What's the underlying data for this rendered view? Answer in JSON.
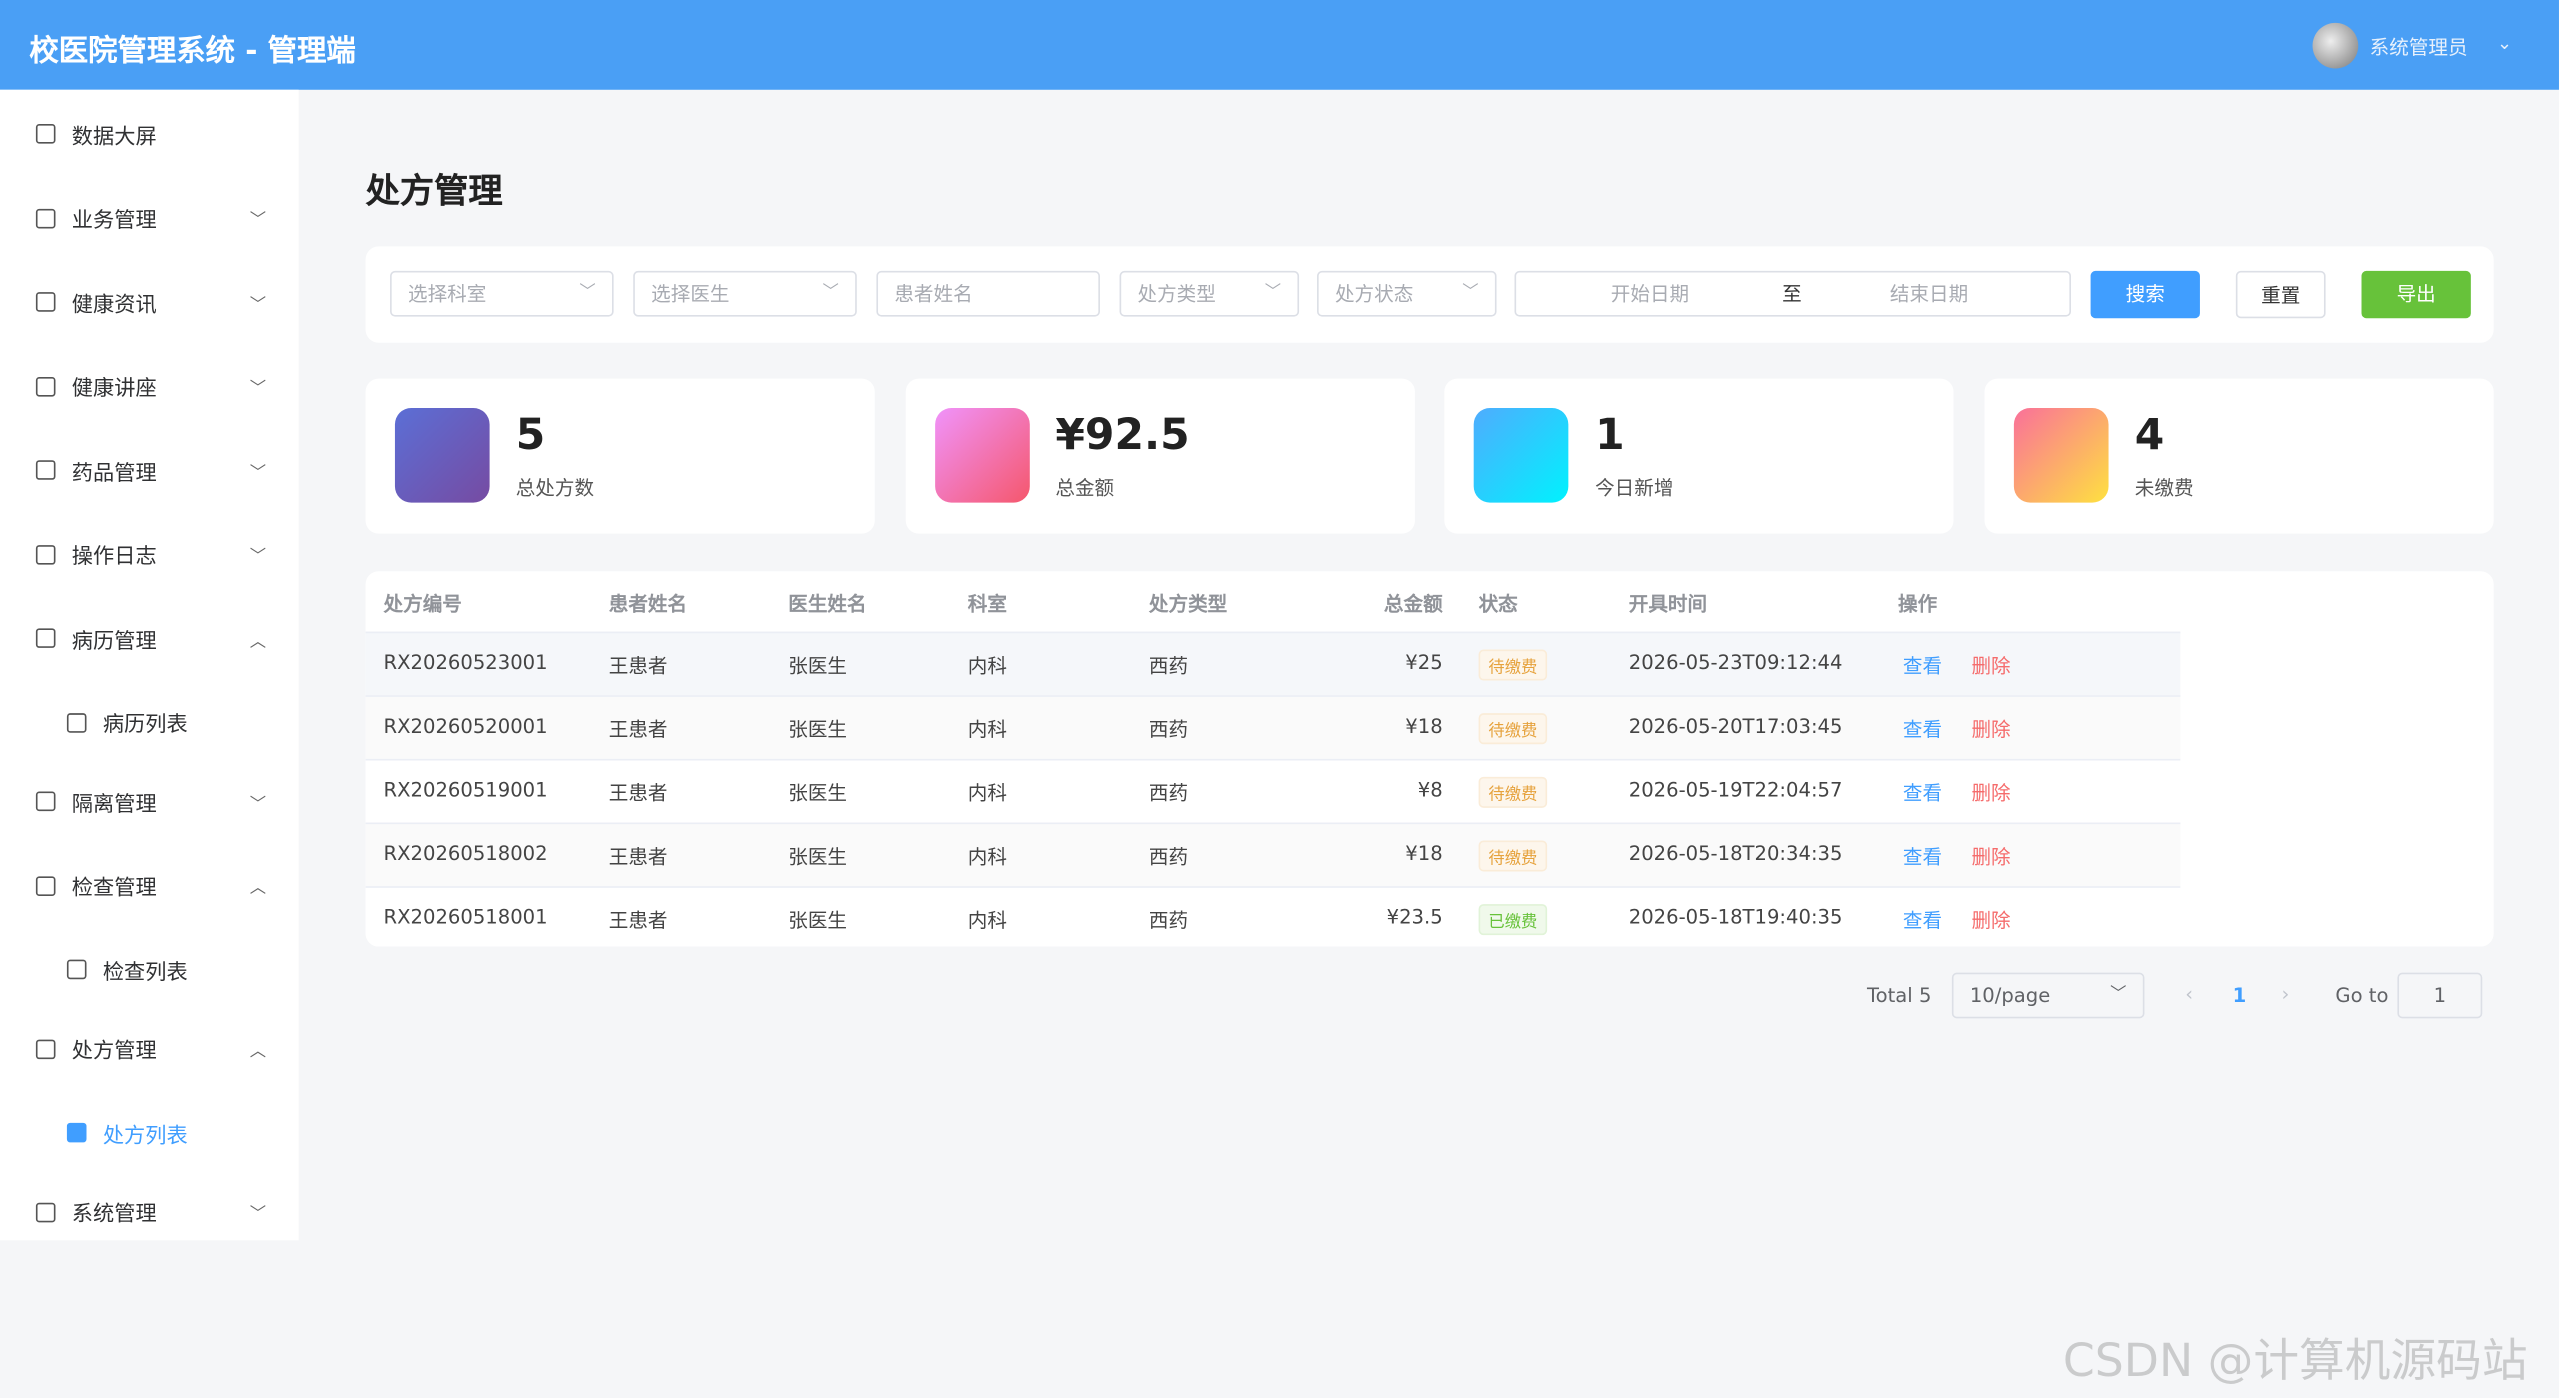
{
  "header": {
    "title": "校医院管理系统 - 管理端",
    "user": "系统管理员"
  },
  "menu": [
    {
      "label": "数据大屏",
      "arrow": "none"
    },
    {
      "label": "业务管理",
      "arrow": "down"
    },
    {
      "label": "健康资讯",
      "arrow": "down"
    },
    {
      "label": "健康讲座",
      "arrow": "down"
    },
    {
      "label": "药品管理",
      "arrow": "down"
    },
    {
      "label": "操作日志",
      "arrow": "down"
    },
    {
      "label": "病历管理",
      "arrow": "up",
      "children": [
        "病历列表"
      ]
    },
    {
      "label": "隔离管理",
      "arrow": "down"
    },
    {
      "label": "检查管理",
      "arrow": "up",
      "children": [
        "检查列表"
      ]
    },
    {
      "label": "处方管理",
      "arrow": "up",
      "children": [
        "处方列表"
      ],
      "active_child": 0
    },
    {
      "label": "系统管理",
      "arrow": "down"
    }
  ],
  "page_title": "处方管理",
  "filters": {
    "selects": [
      "选择科室",
      "选择医生"
    ],
    "name": "患者姓名",
    "selects2": [
      "处方类型",
      "处方状态"
    ],
    "start": "开始日期",
    "sep": "至",
    "end": "结束日期",
    "search": "搜索",
    "reset": "重置",
    "export": "导出"
  },
  "stats": [
    {
      "value": "5",
      "label": "总处方数"
    },
    {
      "value": "¥92.5",
      "label": "总金额"
    },
    {
      "value": "1",
      "label": "今日新增"
    },
    {
      "value": "4",
      "label": "未缴费"
    }
  ],
  "table": {
    "columns": [
      "处方编号",
      "患者姓名",
      "医生姓名",
      "科室",
      "处方类型",
      "总金额",
      "状态",
      "开具时间",
      "操作"
    ],
    "rows": [
      [
        "RX20260523001",
        "王患者",
        "张医生",
        "内科",
        "西药",
        "¥25",
        "待缴费",
        "2026-05-23T09:12:44"
      ],
      [
        "RX20260520001",
        "王患者",
        "张医生",
        "内科",
        "西药",
        "¥18",
        "待缴费",
        "2026-05-20T17:03:45"
      ],
      [
        "RX20260519001",
        "王患者",
        "张医生",
        "内科",
        "西药",
        "¥8",
        "待缴费",
        "2026-05-19T22:04:57"
      ],
      [
        "RX20260518002",
        "王患者",
        "张医生",
        "内科",
        "西药",
        "¥18",
        "待缴费",
        "2026-05-18T20:34:35"
      ],
      [
        "RX20260518001",
        "王患者",
        "张医生",
        "内科",
        "西药",
        "¥23.5",
        "已缴费",
        "2026-05-18T19:40:35"
      ]
    ],
    "actions": [
      "查看",
      "删除"
    ]
  },
  "pagination": {
    "total": "Total 5",
    "size": "10/page",
    "page": "1",
    "goto": "Go to",
    "goto_value": "1"
  },
  "watermark": "CSDN @计算机源码站"
}
